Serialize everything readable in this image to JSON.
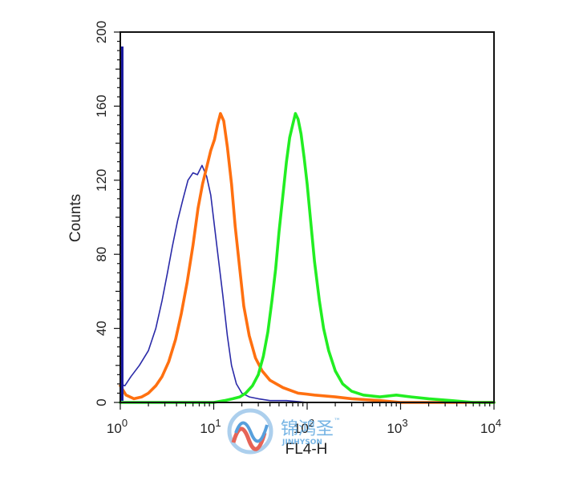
{
  "chart_data": {
    "type": "line",
    "title": "",
    "xlabel": "FL4-H",
    "ylabel": "Counts",
    "x_scale": "log",
    "xlim": [
      1,
      10000
    ],
    "ylim": [
      0,
      200
    ],
    "x_ticks": [
      {
        "value": 1,
        "base": "10",
        "exp": "0"
      },
      {
        "value": 10,
        "base": "10",
        "exp": "1"
      },
      {
        "value": 100,
        "base": "10",
        "exp": "2"
      },
      {
        "value": 1000,
        "base": "10",
        "exp": "3"
      },
      {
        "value": 10000,
        "base": "10",
        "exp": "4"
      }
    ],
    "y_ticks": [
      "0",
      "40",
      "80",
      "120",
      "160",
      "200"
    ],
    "grid": false,
    "legend": "none",
    "series": [
      {
        "color": "#2a2aa8",
        "points": [
          [
            1,
            10
          ],
          [
            1.12,
            9
          ],
          [
            1.3,
            14
          ],
          [
            1.6,
            20
          ],
          [
            2,
            28
          ],
          [
            2.4,
            40
          ],
          [
            2.8,
            55
          ],
          [
            3.2,
            70
          ],
          [
            3.6,
            84
          ],
          [
            4.1,
            98
          ],
          [
            4.7,
            110
          ],
          [
            5.3,
            120
          ],
          [
            6,
            124
          ],
          [
            6.7,
            123
          ],
          [
            7.5,
            128
          ],
          [
            8.4,
            122
          ],
          [
            9.3,
            112
          ],
          [
            10.2,
            95
          ],
          [
            11.2,
            78
          ],
          [
            12.5,
            58
          ],
          [
            14,
            36
          ],
          [
            15.5,
            20
          ],
          [
            17.5,
            10
          ],
          [
            20,
            5
          ],
          [
            24,
            3
          ],
          [
            30,
            2
          ],
          [
            40,
            1
          ],
          [
            60,
            1
          ],
          [
            100,
            0
          ],
          [
            1000,
            0
          ],
          [
            10000,
            0
          ]
        ]
      },
      {
        "color": "#ff7010",
        "points": [
          [
            1,
            9
          ],
          [
            1.15,
            4
          ],
          [
            1.4,
            2
          ],
          [
            1.7,
            3
          ],
          [
            2,
            5
          ],
          [
            2.4,
            9
          ],
          [
            2.8,
            14
          ],
          [
            3.3,
            22
          ],
          [
            3.9,
            34
          ],
          [
            4.5,
            48
          ],
          [
            5.2,
            65
          ],
          [
            6,
            85
          ],
          [
            6.8,
            105
          ],
          [
            7.6,
            118
          ],
          [
            8.5,
            128
          ],
          [
            9.3,
            136
          ],
          [
            10.2,
            142
          ],
          [
            11,
            150
          ],
          [
            11.8,
            156
          ],
          [
            12.8,
            152
          ],
          [
            14,
            138
          ],
          [
            15.5,
            118
          ],
          [
            17,
            95
          ],
          [
            19,
            72
          ],
          [
            21,
            52
          ],
          [
            24,
            36
          ],
          [
            28,
            24
          ],
          [
            33,
            17
          ],
          [
            40,
            12
          ],
          [
            55,
            8
          ],
          [
            80,
            5
          ],
          [
            120,
            4
          ],
          [
            200,
            3
          ],
          [
            300,
            2
          ],
          [
            600,
            1
          ],
          [
            1000,
            0
          ],
          [
            10000,
            0
          ]
        ]
      },
      {
        "color": "#22ee22",
        "points": [
          [
            1,
            0
          ],
          [
            10,
            0
          ],
          [
            13,
            1
          ],
          [
            16,
            2
          ],
          [
            19,
            3
          ],
          [
            22,
            5
          ],
          [
            26,
            9
          ],
          [
            30,
            15
          ],
          [
            34,
            25
          ],
          [
            38,
            38
          ],
          [
            42,
            55
          ],
          [
            46,
            72
          ],
          [
            50,
            92
          ],
          [
            55,
            112
          ],
          [
            60,
            130
          ],
          [
            65,
            143
          ],
          [
            70,
            150
          ],
          [
            75,
            156
          ],
          [
            80,
            153
          ],
          [
            86,
            145
          ],
          [
            93,
            132
          ],
          [
            100,
            118
          ],
          [
            110,
            96
          ],
          [
            120,
            76
          ],
          [
            135,
            55
          ],
          [
            150,
            40
          ],
          [
            170,
            28
          ],
          [
            200,
            17
          ],
          [
            240,
            10
          ],
          [
            300,
            6
          ],
          [
            400,
            4
          ],
          [
            600,
            3
          ],
          [
            900,
            4
          ],
          [
            1300,
            3
          ],
          [
            2000,
            2
          ],
          [
            3500,
            1
          ],
          [
            6000,
            0
          ],
          [
            10000,
            0
          ]
        ]
      }
    ]
  },
  "watermark": {
    "cn_text": "锦鸿圣",
    "tm": "™",
    "en_text": "JINHYSON"
  }
}
